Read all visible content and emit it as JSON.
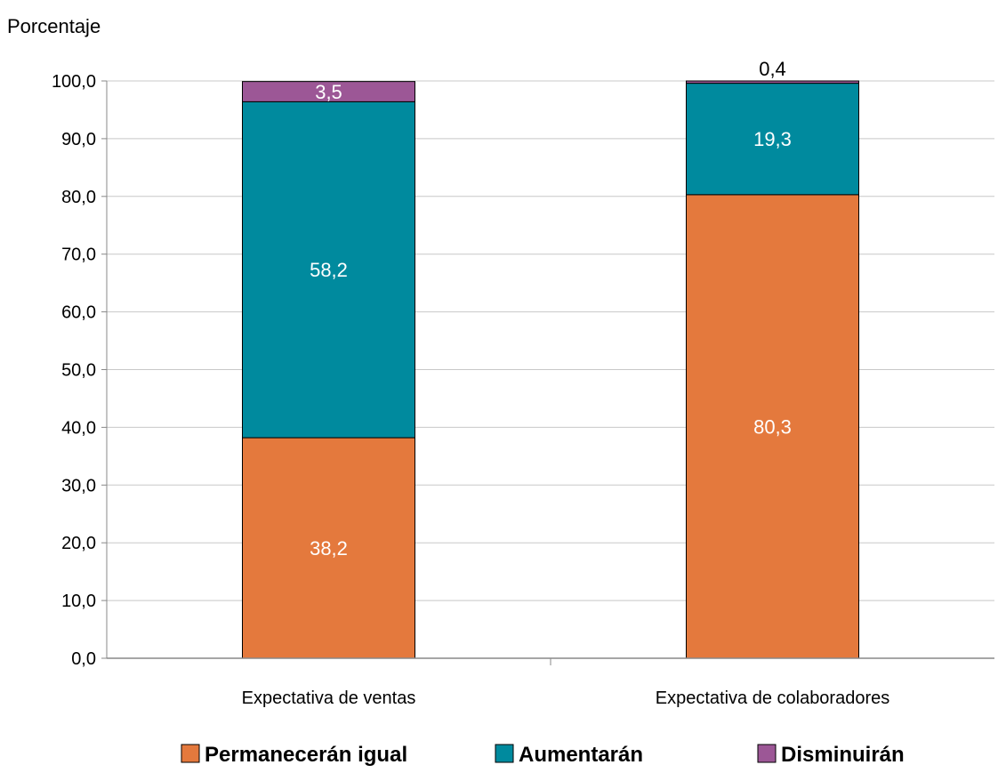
{
  "chart_data": {
    "type": "bar",
    "stacked": true,
    "title": "",
    "xlabel": "",
    "ylabel": "Porcentaje",
    "ylim": [
      0,
      100
    ],
    "ytick_step": 10,
    "ytick_labels": [
      "0,0",
      "10,0",
      "20,0",
      "30,0",
      "40,0",
      "50,0",
      "60,0",
      "70,0",
      "80,0",
      "90,0",
      "100,0"
    ],
    "grid": true,
    "categories": [
      "Expectativa de ventas",
      "Expectativa de colaboradores"
    ],
    "series": [
      {
        "name": "Permanecerán igual",
        "color": "#E4793D",
        "values": [
          38.2,
          80.3
        ],
        "labels": [
          "38,2",
          "80,3"
        ]
      },
      {
        "name": "Aumentarán",
        "color": "#008A9E",
        "values": [
          58.2,
          19.3
        ],
        "labels": [
          "58,2",
          "19,3"
        ]
      },
      {
        "name": "Disminuirán",
        "color": "#9C5796",
        "values": [
          3.5,
          0.4
        ],
        "labels": [
          "3,5",
          "0,4"
        ]
      }
    ],
    "legend_position": "bottom"
  }
}
